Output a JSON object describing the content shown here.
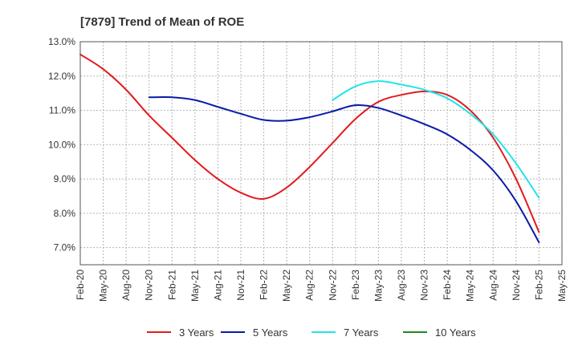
{
  "chart_data": {
    "type": "line",
    "title": "[7879]  Trend of Mean of ROE",
    "xlabel": "",
    "ylabel": "",
    "categories": [
      "Feb-20",
      "May-20",
      "Aug-20",
      "Nov-20",
      "Feb-21",
      "May-21",
      "Aug-21",
      "Nov-21",
      "Feb-22",
      "May-22",
      "Aug-22",
      "Nov-22",
      "Feb-23",
      "May-23",
      "Aug-23",
      "Nov-23",
      "Feb-24",
      "May-24",
      "Aug-24",
      "Nov-24",
      "Feb-25",
      "May-25"
    ],
    "ylim": [
      6.5,
      13.0
    ],
    "yticks": [
      7.0,
      8.0,
      9.0,
      10.0,
      11.0,
      12.0,
      13.0
    ],
    "ytick_labels": [
      "7.0%",
      "8.0%",
      "9.0%",
      "10.0%",
      "11.0%",
      "12.0%",
      "13.0%"
    ],
    "grid": true,
    "legend_position": "bottom",
    "series": [
      {
        "name": "3 Years",
        "color": "#e31a1c",
        "values": [
          12.63,
          12.2,
          11.6,
          10.85,
          10.2,
          9.55,
          9.0,
          8.6,
          8.42,
          8.75,
          9.35,
          10.05,
          10.75,
          11.25,
          11.45,
          11.55,
          11.45,
          11.0,
          10.2,
          9.0,
          7.45,
          null
        ]
      },
      {
        "name": "5 Years",
        "color": "#0a1aa6",
        "values": [
          null,
          null,
          null,
          11.38,
          11.38,
          11.3,
          11.1,
          10.9,
          10.72,
          10.7,
          10.8,
          10.97,
          11.15,
          11.07,
          10.85,
          10.6,
          10.3,
          9.85,
          9.25,
          8.35,
          7.15,
          null
        ]
      },
      {
        "name": "7 Years",
        "color": "#22e4e8",
        "values": [
          null,
          null,
          null,
          null,
          null,
          null,
          null,
          null,
          null,
          null,
          null,
          11.3,
          11.7,
          11.85,
          11.75,
          11.6,
          11.35,
          10.9,
          10.3,
          9.45,
          8.45,
          null
        ]
      },
      {
        "name": "10 Years",
        "color": "#1f8a1f",
        "values": [
          null,
          null,
          null,
          null,
          null,
          null,
          null,
          null,
          null,
          null,
          null,
          null,
          null,
          null,
          null,
          null,
          null,
          null,
          null,
          null,
          null,
          null
        ]
      }
    ]
  }
}
